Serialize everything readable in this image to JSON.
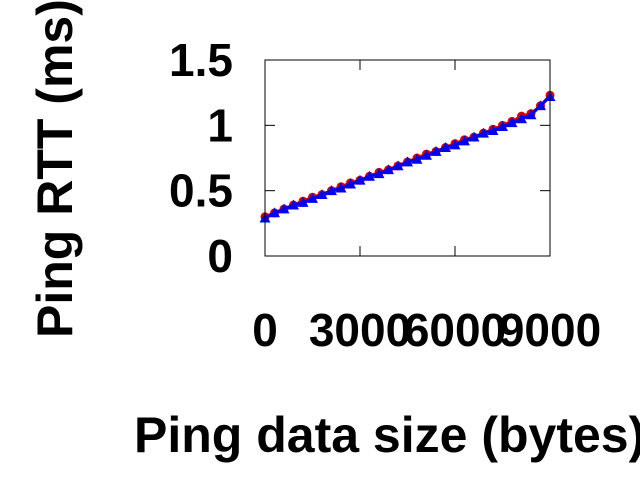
{
  "chart_data": {
    "type": "scatter",
    "xlabel": "Ping data size (bytes)",
    "ylabel": "Ping RTT (ms)",
    "xlim": [
      0,
      9000
    ],
    "ylim": [
      0,
      1.5
    ],
    "x_ticks": [
      0,
      3000,
      6000,
      9000
    ],
    "x_tick_labels": [
      "0",
      "3000",
      "6000",
      "9000"
    ],
    "y_ticks": [
      0,
      0.5,
      1,
      1.5
    ],
    "y_tick_labels": [
      "0",
      "0.5",
      "1",
      "1.5"
    ],
    "grid": false,
    "legend": "none",
    "series": [
      {
        "marker": "circle",
        "color": "#dd0000",
        "x": [
          0,
          300,
          600,
          900,
          1200,
          1500,
          1800,
          2100,
          2400,
          2700,
          3000,
          3300,
          3600,
          3900,
          4200,
          4500,
          4800,
          5100,
          5400,
          5700,
          6000,
          6300,
          6600,
          6900,
          7200,
          7500,
          7800,
          8100,
          8400,
          8700,
          9000
        ],
        "values": [
          0.3,
          0.33,
          0.36,
          0.39,
          0.42,
          0.45,
          0.47,
          0.5,
          0.53,
          0.56,
          0.58,
          0.61,
          0.64,
          0.66,
          0.69,
          0.72,
          0.75,
          0.78,
          0.8,
          0.83,
          0.86,
          0.89,
          0.91,
          0.94,
          0.97,
          1.0,
          1.03,
          1.07,
          1.09,
          1.15,
          1.23
        ]
      },
      {
        "marker": "triangle",
        "color": "#0000ee",
        "x": [
          0,
          300,
          600,
          900,
          1200,
          1500,
          1800,
          2100,
          2400,
          2700,
          3000,
          3300,
          3600,
          3900,
          4200,
          4500,
          4800,
          5100,
          5400,
          5700,
          6000,
          6300,
          6600,
          6900,
          7200,
          7500,
          7800,
          8100,
          8400,
          8700,
          9000
        ],
        "values": [
          0.29,
          0.33,
          0.36,
          0.39,
          0.41,
          0.44,
          0.47,
          0.5,
          0.52,
          0.55,
          0.58,
          0.61,
          0.63,
          0.66,
          0.69,
          0.72,
          0.74,
          0.77,
          0.8,
          0.83,
          0.85,
          0.88,
          0.91,
          0.94,
          0.96,
          0.99,
          1.02,
          1.05,
          1.08,
          1.15,
          1.22
        ]
      }
    ]
  }
}
